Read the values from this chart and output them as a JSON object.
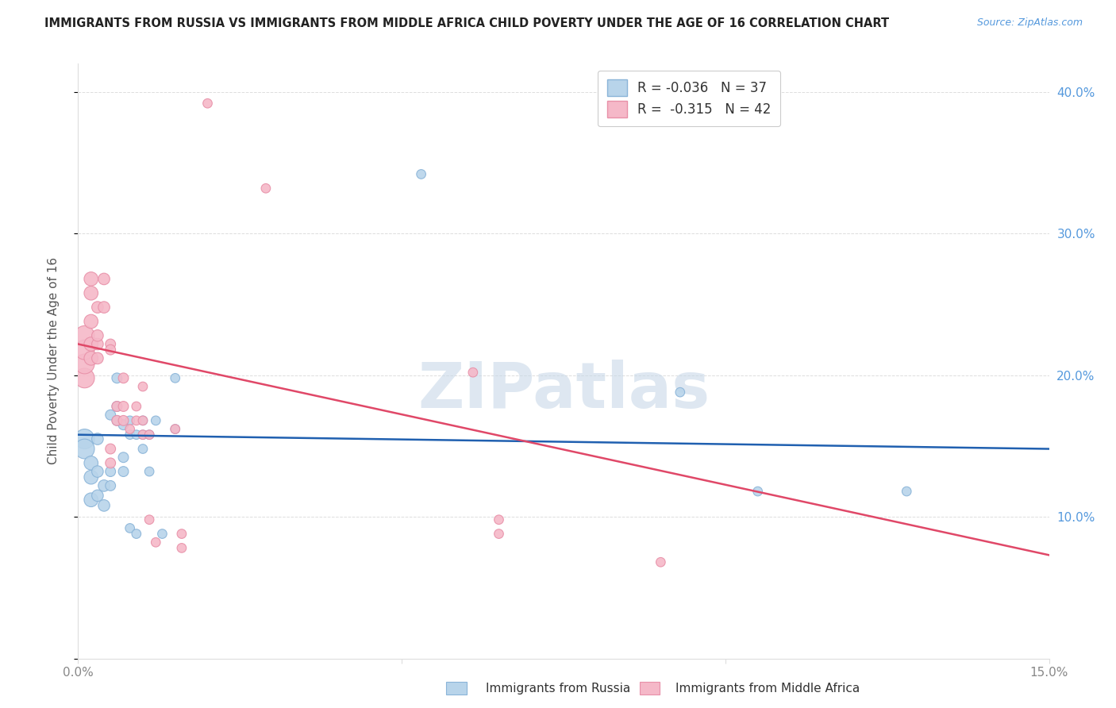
{
  "title": "IMMIGRANTS FROM RUSSIA VS IMMIGRANTS FROM MIDDLE AFRICA CHILD POVERTY UNDER THE AGE OF 16 CORRELATION CHART",
  "source": "Source: ZipAtlas.com",
  "ylabel": "Child Poverty Under the Age of 16",
  "xlim": [
    0,
    0.15
  ],
  "ylim": [
    0,
    0.42
  ],
  "russia_R": -0.036,
  "russia_N": 37,
  "africa_R": -0.315,
  "africa_N": 42,
  "russia_color": "#b8d4ea",
  "africa_color": "#f5b8c8",
  "russia_edge_color": "#8ab4d8",
  "africa_edge_color": "#e890a8",
  "russia_line_color": "#2060b0",
  "africa_line_color": "#e04868",
  "watermark": "ZIPatlas",
  "watermark_color": "#c8d8e8",
  "russia_line_y0": 0.158,
  "russia_line_y1": 0.148,
  "africa_line_y0": 0.222,
  "africa_line_y1": 0.073,
  "russia_points": [
    [
      0.001,
      0.155
    ],
    [
      0.001,
      0.148
    ],
    [
      0.002,
      0.138
    ],
    [
      0.002,
      0.128
    ],
    [
      0.002,
      0.112
    ],
    [
      0.003,
      0.155
    ],
    [
      0.003,
      0.132
    ],
    [
      0.003,
      0.115
    ],
    [
      0.004,
      0.122
    ],
    [
      0.004,
      0.108
    ],
    [
      0.005,
      0.172
    ],
    [
      0.005,
      0.122
    ],
    [
      0.005,
      0.132
    ],
    [
      0.006,
      0.178
    ],
    [
      0.006,
      0.198
    ],
    [
      0.006,
      0.168
    ],
    [
      0.007,
      0.165
    ],
    [
      0.007,
      0.142
    ],
    [
      0.007,
      0.132
    ],
    [
      0.008,
      0.158
    ],
    [
      0.008,
      0.168
    ],
    [
      0.008,
      0.092
    ],
    [
      0.009,
      0.158
    ],
    [
      0.009,
      0.088
    ],
    [
      0.01,
      0.168
    ],
    [
      0.01,
      0.158
    ],
    [
      0.01,
      0.148
    ],
    [
      0.011,
      0.132
    ],
    [
      0.011,
      0.158
    ],
    [
      0.012,
      0.168
    ],
    [
      0.013,
      0.088
    ],
    [
      0.015,
      0.162
    ],
    [
      0.015,
      0.198
    ],
    [
      0.053,
      0.342
    ],
    [
      0.093,
      0.188
    ],
    [
      0.105,
      0.118
    ],
    [
      0.128,
      0.118
    ]
  ],
  "africa_points": [
    [
      0.001,
      0.198
    ],
    [
      0.001,
      0.208
    ],
    [
      0.001,
      0.218
    ],
    [
      0.001,
      0.228
    ],
    [
      0.002,
      0.222
    ],
    [
      0.002,
      0.212
    ],
    [
      0.002,
      0.258
    ],
    [
      0.002,
      0.268
    ],
    [
      0.002,
      0.238
    ],
    [
      0.003,
      0.222
    ],
    [
      0.003,
      0.248
    ],
    [
      0.003,
      0.212
    ],
    [
      0.003,
      0.228
    ],
    [
      0.004,
      0.248
    ],
    [
      0.004,
      0.268
    ],
    [
      0.005,
      0.222
    ],
    [
      0.005,
      0.218
    ],
    [
      0.005,
      0.148
    ],
    [
      0.005,
      0.138
    ],
    [
      0.006,
      0.178
    ],
    [
      0.006,
      0.168
    ],
    [
      0.007,
      0.198
    ],
    [
      0.007,
      0.178
    ],
    [
      0.007,
      0.168
    ],
    [
      0.008,
      0.162
    ],
    [
      0.009,
      0.178
    ],
    [
      0.009,
      0.168
    ],
    [
      0.01,
      0.192
    ],
    [
      0.01,
      0.168
    ],
    [
      0.01,
      0.158
    ],
    [
      0.011,
      0.158
    ],
    [
      0.011,
      0.098
    ],
    [
      0.012,
      0.082
    ],
    [
      0.015,
      0.162
    ],
    [
      0.016,
      0.088
    ],
    [
      0.016,
      0.078
    ],
    [
      0.02,
      0.392
    ],
    [
      0.029,
      0.332
    ],
    [
      0.061,
      0.202
    ],
    [
      0.065,
      0.098
    ],
    [
      0.065,
      0.088
    ],
    [
      0.09,
      0.068
    ]
  ],
  "grid_color": "#dddddd",
  "tick_color": "#888888",
  "right_tick_color": "#5599dd",
  "spine_color": "#dddddd"
}
